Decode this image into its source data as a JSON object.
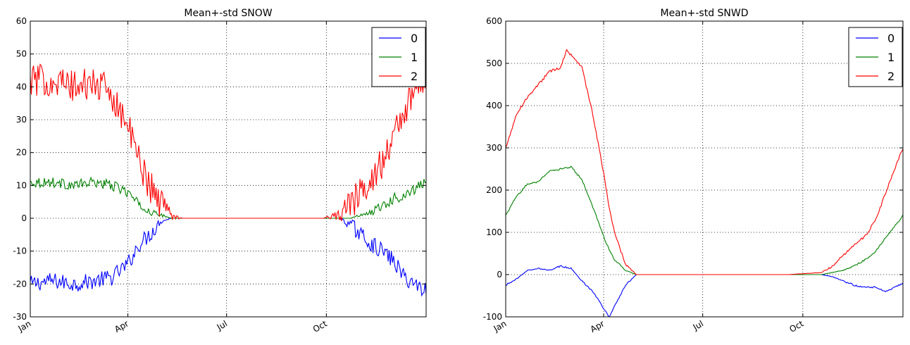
{
  "chart_data": [
    {
      "type": "line",
      "title": "Mean+-std   SNOW",
      "xlabel": "",
      "ylabel": "",
      "x_range_days": [
        0,
        365
      ],
      "x_ticks": [
        {
          "day": 0,
          "label": "Jan"
        },
        {
          "day": 90,
          "label": "Apr"
        },
        {
          "day": 181,
          "label": "Jul"
        },
        {
          "day": 273,
          "label": "Oct"
        }
      ],
      "ylim": [
        -30,
        60
      ],
      "y_ticks": [
        -30,
        -20,
        -10,
        0,
        10,
        20,
        30,
        40,
        50,
        60
      ],
      "grid": true,
      "legend_position": "top-right",
      "series": [
        {
          "name": "0",
          "color": "#0000ff",
          "noise": 2.5,
          "x": [
            0,
            20,
            40,
            60,
            75,
            90,
            100,
            110,
            120,
            130,
            140,
            150,
            160,
            200,
            240,
            270,
            285,
            295,
            305,
            315,
            325,
            335,
            345,
            355,
            365
          ],
          "values": [
            -20,
            -19,
            -20,
            -19,
            -18,
            -14,
            -8,
            -5,
            -1,
            0,
            0,
            0,
            0,
            0,
            0,
            0,
            0,
            -2,
            -5,
            -8,
            -10,
            -13,
            -18,
            -20,
            -22
          ]
        },
        {
          "name": "1",
          "color": "#008000",
          "noise": 1.6,
          "x": [
            0,
            20,
            40,
            60,
            75,
            90,
            100,
            110,
            120,
            130,
            140,
            150,
            160,
            200,
            240,
            270,
            285,
            295,
            305,
            315,
            325,
            335,
            345,
            355,
            365
          ],
          "values": [
            11,
            11,
            10,
            11,
            10,
            8,
            4,
            2,
            1,
            0,
            0,
            0,
            0,
            0,
            0,
            0,
            0,
            0,
            1,
            2,
            4,
            6,
            7,
            9,
            11
          ]
        },
        {
          "name": "2",
          "color": "#ff0000",
          "noise": 5,
          "x": [
            0,
            20,
            40,
            60,
            75,
            90,
            100,
            110,
            120,
            130,
            140,
            150,
            160,
            200,
            240,
            270,
            285,
            295,
            305,
            315,
            325,
            335,
            345,
            355,
            365
          ],
          "values": [
            42,
            42,
            40,
            41,
            38,
            28,
            18,
            10,
            5,
            1,
            0,
            0,
            0,
            0,
            0,
            0,
            1,
            4,
            8,
            13,
            17,
            25,
            33,
            38,
            44
          ]
        }
      ]
    },
    {
      "type": "line",
      "title": "Mean+-std   SNWD",
      "xlabel": "",
      "ylabel": "",
      "x_range_days": [
        0,
        365
      ],
      "x_ticks": [
        {
          "day": 0,
          "label": "Jan"
        },
        {
          "day": 90,
          "label": "Apr"
        },
        {
          "day": 181,
          "label": "Jul"
        },
        {
          "day": 273,
          "label": "Oct"
        }
      ],
      "ylim": [
        -100,
        600
      ],
      "y_ticks": [
        -100,
        0,
        100,
        200,
        300,
        400,
        500,
        600
      ],
      "grid": true,
      "legend_position": "top-right",
      "series": [
        {
          "name": "0",
          "color": "#0000ff",
          "noise": 2,
          "x": [
            0,
            10,
            20,
            30,
            40,
            50,
            60,
            70,
            80,
            90,
            95,
            100,
            110,
            120,
            150,
            200,
            260,
            290,
            300,
            310,
            320,
            330,
            340,
            350,
            365
          ],
          "values": [
            -25,
            -10,
            10,
            15,
            10,
            20,
            15,
            -15,
            -40,
            -80,
            -100,
            -75,
            -25,
            0,
            0,
            0,
            0,
            0,
            -5,
            -15,
            -25,
            -30,
            -30,
            -40,
            -20
          ]
        },
        {
          "name": "1",
          "color": "#008000",
          "noise": 2,
          "x": [
            0,
            10,
            20,
            30,
            40,
            50,
            60,
            70,
            80,
            90,
            95,
            100,
            110,
            120,
            150,
            200,
            260,
            290,
            300,
            310,
            320,
            330,
            340,
            350,
            365
          ],
          "values": [
            140,
            185,
            215,
            220,
            245,
            250,
            255,
            225,
            160,
            90,
            60,
            35,
            10,
            0,
            0,
            0,
            0,
            0,
            5,
            10,
            20,
            35,
            55,
            90,
            140
          ]
        },
        {
          "name": "2",
          "color": "#ff0000",
          "noise": 3,
          "x": [
            0,
            5,
            10,
            20,
            30,
            40,
            50,
            56,
            60,
            70,
            80,
            90,
            95,
            100,
            110,
            120,
            150,
            200,
            260,
            290,
            300,
            310,
            320,
            330,
            340,
            350,
            365
          ],
          "values": [
            300,
            340,
            380,
            420,
            450,
            480,
            490,
            530,
            520,
            490,
            380,
            240,
            160,
            100,
            25,
            0,
            0,
            0,
            0,
            5,
            20,
            45,
            70,
            90,
            130,
            200,
            300
          ]
        }
      ]
    }
  ]
}
